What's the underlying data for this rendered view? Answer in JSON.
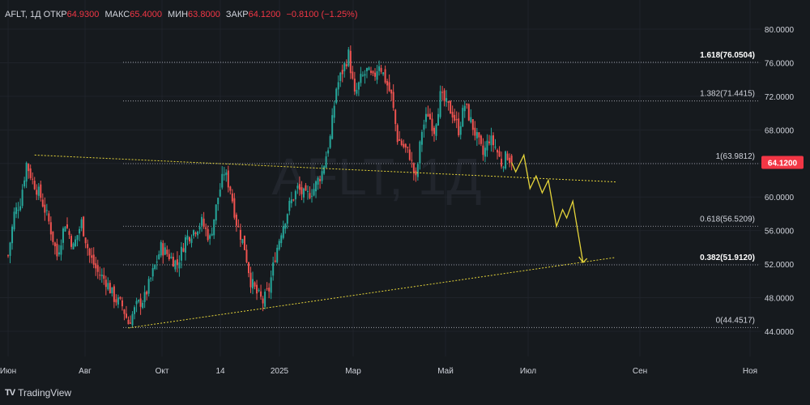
{
  "legend": {
    "symbol": "AFLT, 1Д",
    "open_label": "ОТКР",
    "open_value": "64.9300",
    "high_label": "МАКС",
    "high_value": "65.4000",
    "low_label": "МИН",
    "low_value": "63.8000",
    "close_label": "ЗАКР",
    "close_value": "64.1200",
    "change": "−0.8100 (−1.25%)"
  },
  "watermark": "AFLT, 1Д",
  "branding": {
    "logo": "TV",
    "name": "TradingView"
  },
  "colors": {
    "background": "#161a1e",
    "up": "#26a69a",
    "down": "#ef5350",
    "trend": "#e6d53a",
    "fib": "#b2b5be",
    "price_tag": "#f23645"
  },
  "chart_data": {
    "type": "candlestick",
    "y_ticks": [
      44,
      48,
      52,
      56,
      60,
      64,
      68,
      72,
      76,
      80
    ],
    "y_tick_labels": [
      "44.0000",
      "48.0000",
      "52.0000",
      "56.0000",
      "60.0000",
      "64.0000",
      "68.0000",
      "72.0000",
      "76.0000",
      "80.0000"
    ],
    "ylim": [
      42.5,
      81.5
    ],
    "x_ticks": [
      "Июн",
      "Авг",
      "Окт",
      "14",
      "2025",
      "Мар",
      "Май",
      "Июл",
      "Сен",
      "Ноя"
    ],
    "last_price": "64.1200",
    "fib_levels": [
      {
        "label": "1.618(76.0504)",
        "value": 76.0504,
        "bold": true
      },
      {
        "label": "1.382(71.4415)",
        "value": 71.4415,
        "bold": false
      },
      {
        "label": "1(63.9812)",
        "value": 63.9812,
        "bold": false
      },
      {
        "label": "0.618(56.5209)",
        "value": 56.5209,
        "bold": false
      },
      {
        "label": "0.382(51.9120)",
        "value": 51.912,
        "bold": true
      },
      {
        "label": "0(44.4517)",
        "value": 44.4517,
        "bold": false
      }
    ],
    "series_close_path": [
      {
        "t": 0,
        "v": 53
      },
      {
        "t": 3,
        "v": 58
      },
      {
        "t": 6,
        "v": 59.5
      },
      {
        "t": 9,
        "v": 64
      },
      {
        "t": 12,
        "v": 62
      },
      {
        "t": 16,
        "v": 60
      },
      {
        "t": 20,
        "v": 57
      },
      {
        "t": 24,
        "v": 53
      },
      {
        "t": 28,
        "v": 57
      },
      {
        "t": 32,
        "v": 54
      },
      {
        "t": 36,
        "v": 57
      },
      {
        "t": 40,
        "v": 53
      },
      {
        "t": 44,
        "v": 51
      },
      {
        "t": 48,
        "v": 50
      },
      {
        "t": 52,
        "v": 48
      },
      {
        "t": 56,
        "v": 47
      },
      {
        "t": 59,
        "v": 45
      },
      {
        "t": 63,
        "v": 47
      },
      {
        "t": 67,
        "v": 48
      },
      {
        "t": 71,
        "v": 51
      },
      {
        "t": 75,
        "v": 54
      },
      {
        "t": 79,
        "v": 53
      },
      {
        "t": 83,
        "v": 52
      },
      {
        "t": 87,
        "v": 55
      },
      {
        "t": 91,
        "v": 56
      },
      {
        "t": 95,
        "v": 57
      },
      {
        "t": 99,
        "v": 55
      },
      {
        "t": 103,
        "v": 60
      },
      {
        "t": 106,
        "v": 63
      },
      {
        "t": 109,
        "v": 61
      },
      {
        "t": 112,
        "v": 57
      },
      {
        "t": 116,
        "v": 54
      },
      {
        "t": 119,
        "v": 50
      },
      {
        "t": 122,
        "v": 48.5
      },
      {
        "t": 125,
        "v": 47.5
      },
      {
        "t": 128,
        "v": 49
      },
      {
        "t": 131,
        "v": 53
      },
      {
        "t": 134,
        "v": 56
      },
      {
        "t": 138,
        "v": 59
      },
      {
        "t": 142,
        "v": 61
      },
      {
        "t": 146,
        "v": 60
      },
      {
        "t": 150,
        "v": 61
      },
      {
        "t": 154,
        "v": 63
      },
      {
        "t": 158,
        "v": 67
      },
      {
        "t": 161,
        "v": 73
      },
      {
        "t": 164,
        "v": 75
      },
      {
        "t": 167,
        "v": 77
      },
      {
        "t": 170,
        "v": 72
      },
      {
        "t": 173,
        "v": 74
      },
      {
        "t": 176,
        "v": 75
      },
      {
        "t": 179,
        "v": 74
      },
      {
        "t": 182,
        "v": 76
      },
      {
        "t": 185,
        "v": 74
      },
      {
        "t": 188,
        "v": 72
      },
      {
        "t": 191,
        "v": 67
      },
      {
        "t": 194,
        "v": 66
      },
      {
        "t": 197,
        "v": 65
      },
      {
        "t": 200,
        "v": 62
      },
      {
        "t": 203,
        "v": 68
      },
      {
        "t": 206,
        "v": 70
      },
      {
        "t": 209,
        "v": 68
      },
      {
        "t": 212,
        "v": 72
      },
      {
        "t": 215,
        "v": 71
      },
      {
        "t": 218,
        "v": 70
      },
      {
        "t": 221,
        "v": 68
      },
      {
        "t": 224,
        "v": 71
      },
      {
        "t": 227,
        "v": 69
      },
      {
        "t": 230,
        "v": 67
      },
      {
        "t": 233,
        "v": 65
      },
      {
        "t": 236,
        "v": 67
      },
      {
        "t": 239,
        "v": 66
      },
      {
        "t": 242,
        "v": 64
      },
      {
        "t": 245,
        "v": 65
      },
      {
        "t": 247,
        "v": 64.12
      }
    ],
    "trendlines": [
      {
        "from": {
          "t": 13,
          "v": 65
        },
        "to": {
          "t": 298,
          "v": 61.8
        }
      },
      {
        "from": {
          "t": 59,
          "v": 44.4
        },
        "to": {
          "t": 298,
          "v": 52.8
        }
      }
    ],
    "forecast_path": [
      {
        "t": 247,
        "v": 64.12
      },
      {
        "t": 249,
        "v": 63
      },
      {
        "t": 253,
        "v": 65
      },
      {
        "t": 256,
        "v": 61
      },
      {
        "t": 259,
        "v": 62.5
      },
      {
        "t": 262,
        "v": 60.5
      },
      {
        "t": 265,
        "v": 62
      },
      {
        "t": 269,
        "v": 56.5
      },
      {
        "t": 272,
        "v": 58.5
      },
      {
        "t": 274,
        "v": 57.5
      },
      {
        "t": 277,
        "v": 59.5
      },
      {
        "t": 282,
        "v": 52.2
      }
    ]
  }
}
